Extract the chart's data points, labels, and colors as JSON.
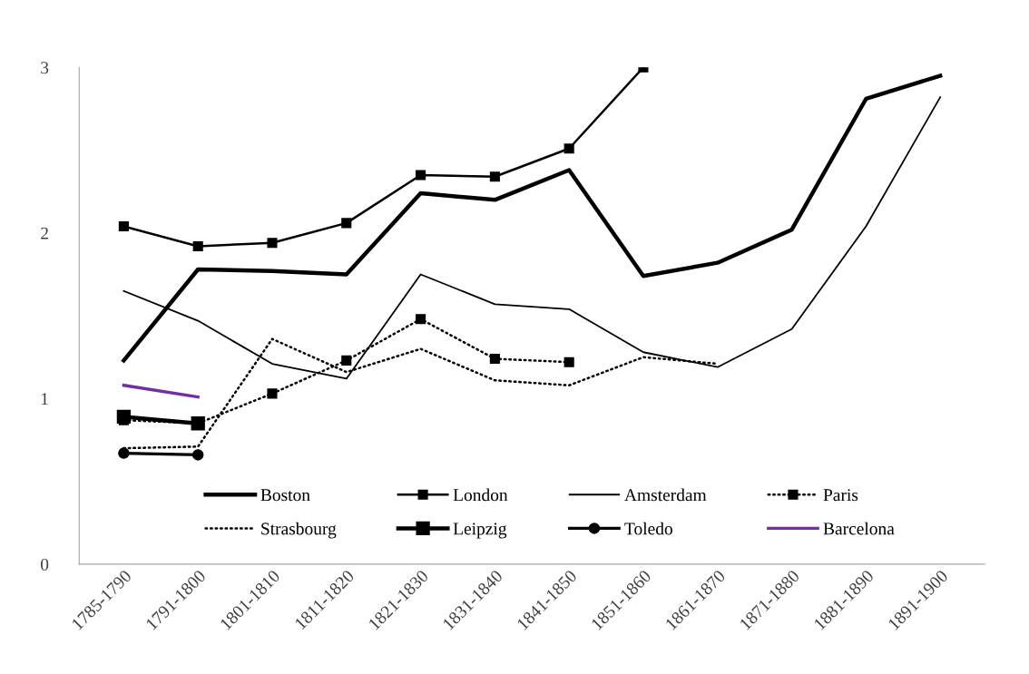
{
  "chart_data": {
    "type": "line",
    "categories": [
      "1785-1790",
      "1791-1800",
      "1801-1810",
      "1811-1820",
      "1821-1830",
      "1831-1840",
      "1841-1850",
      "1851-1860",
      "1861-1870",
      "1871-1880",
      "1881-1890",
      "1891-1900"
    ],
    "ylim": [
      0,
      3
    ],
    "yticks": [
      0,
      1,
      2,
      3
    ],
    "grid": false,
    "legend": "bottom",
    "series": [
      {
        "name": "Boston",
        "color": "#000000",
        "line_style": "solid",
        "marker": "none",
        "values": [
          1.23,
          1.78,
          1.77,
          1.75,
          2.24,
          2.2,
          2.38,
          1.74,
          1.82,
          2.02,
          2.81,
          2.95
        ]
      },
      {
        "name": "London",
        "color": "#000000",
        "line_style": "solid",
        "marker": "square",
        "values": [
          2.04,
          1.92,
          1.94,
          2.06,
          2.35,
          2.34,
          2.51,
          3.0,
          null,
          null,
          null,
          null
        ]
      },
      {
        "name": "Amsterdam",
        "color": "#000000",
        "line_style": "solid",
        "marker": "none",
        "values": [
          1.65,
          1.47,
          1.21,
          1.12,
          1.75,
          1.57,
          1.54,
          1.28,
          1.19,
          1.42,
          2.04,
          2.82
        ]
      },
      {
        "name": "Paris",
        "color": "#000000",
        "line_style": "dotted",
        "marker": "square",
        "values": [
          0.87,
          0.85,
          1.03,
          1.23,
          1.48,
          1.24,
          1.22,
          null,
          null,
          null,
          null,
          null
        ]
      },
      {
        "name": "Strasbourg",
        "color": "#000000",
        "line_style": "dotted",
        "marker": "none",
        "values": [
          0.7,
          0.71,
          1.36,
          1.16,
          1.3,
          1.11,
          1.08,
          1.25,
          1.21,
          null,
          null,
          null
        ]
      },
      {
        "name": "Leipzig",
        "color": "#000000",
        "line_style": "solid",
        "marker": "square",
        "values": [
          0.89,
          0.85,
          null,
          null,
          null,
          null,
          null,
          null,
          null,
          null,
          null,
          null
        ]
      },
      {
        "name": "Toledo",
        "color": "#000000",
        "line_style": "solid",
        "marker": "circle",
        "values": [
          0.67,
          0.66,
          null,
          null,
          null,
          null,
          null,
          null,
          null,
          null,
          null,
          null
        ]
      },
      {
        "name": "Barcelona",
        "color": "#7030a0",
        "line_style": "solid",
        "marker": "none",
        "values": [
          1.08,
          1.01,
          null,
          null,
          null,
          null,
          null,
          null,
          null,
          null,
          null,
          null
        ]
      }
    ]
  }
}
